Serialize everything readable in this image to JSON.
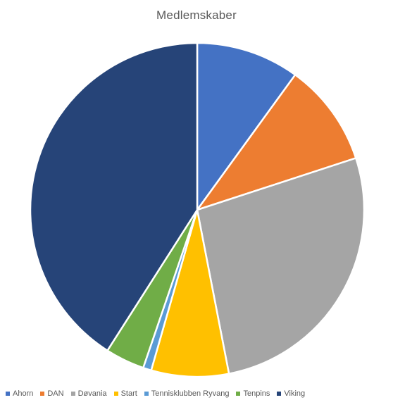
{
  "chart_data": {
    "type": "pie",
    "title": "Medlemskaber",
    "legend_position": "bottom",
    "categories": [
      "Ahorn",
      "DAN",
      "Døvania",
      "Start",
      "Tennisklubben Ryvang",
      "Tenpins",
      "Viking"
    ],
    "values": [
      10,
      10,
      27,
      7.5,
      0.8,
      3.8,
      41
    ],
    "colors": [
      "#4472C4",
      "#ED7D31",
      "#A5A5A5",
      "#FFC000",
      "#5B9BD5",
      "#70AD47",
      "#264478"
    ],
    "slice_border_color": "#FFFFFF",
    "start_angle_deg": 0,
    "direction": "clockwise"
  }
}
